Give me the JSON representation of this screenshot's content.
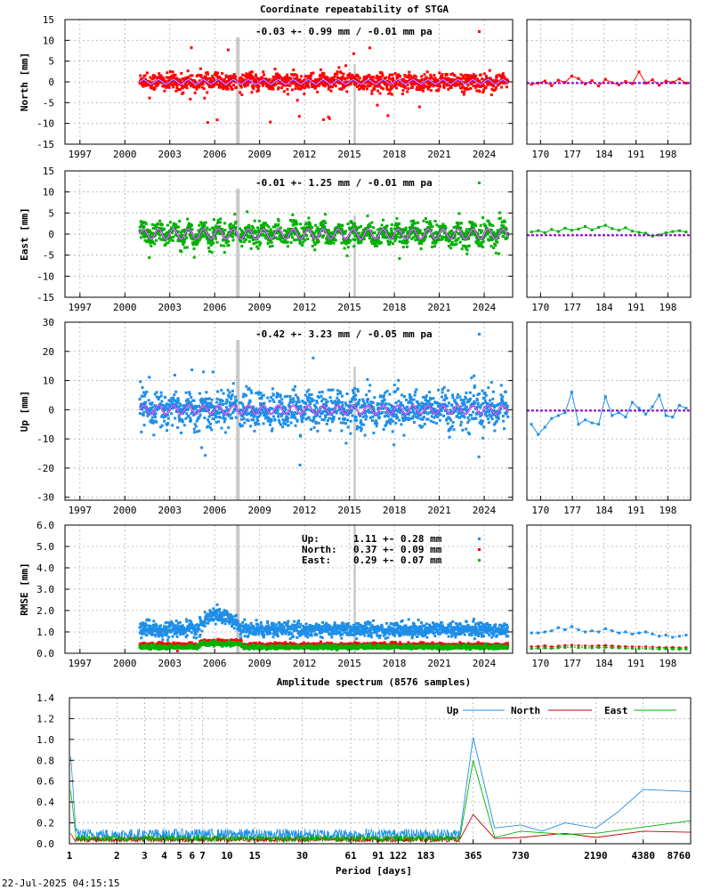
{
  "title": "Coordinate repeatability of STGA",
  "timestamp": "22-Jul-2025 04:15:15",
  "colors": {
    "north": "#ff0000",
    "east": "#00b000",
    "up": "#1e8ee8",
    "model": "#9400d3"
  },
  "chart_data": [
    {
      "id": "north",
      "type": "scatter",
      "ylabel": "North [mm]",
      "ylim": [
        -15,
        15
      ],
      "yticks": [
        -15,
        -10,
        -5,
        0,
        5,
        10,
        15
      ],
      "xlim": [
        1996.0,
        2025.9
      ],
      "xticks": [
        1997,
        2000,
        2003,
        2006,
        2009,
        2012,
        2015,
        2018,
        2021,
        2024
      ],
      "stat": "-0.03 +- 0.99 mm / -0.01 mm pa",
      "data_start": 2001.0,
      "data_end": 2025.6,
      "series": [
        {
          "name": "North",
          "sigma": 1.0,
          "outlier_range": [
            -10,
            9
          ],
          "seasonal_amplitude": 0.5
        }
      ],
      "recent": {
        "xlim": [
          167,
          203
        ],
        "xticks": [
          170,
          177,
          184,
          191,
          198
        ],
        "values": [
          -0.6,
          -0.3,
          0.2,
          -0.9,
          0.4,
          -0.1,
          1.4,
          0.8,
          -0.5,
          0.3,
          -1.0,
          0.6,
          -0.2,
          -0.7,
          0.1,
          -0.4,
          2.4,
          -0.3,
          0.5,
          -0.8,
          0.2,
          -0.1,
          0.7,
          -0.3
        ]
      }
    },
    {
      "id": "east",
      "type": "scatter",
      "ylabel": "East [mm]",
      "ylim": [
        -15,
        15
      ],
      "yticks": [
        -15,
        -10,
        -5,
        0,
        5,
        10,
        15
      ],
      "xlim": [
        1996.0,
        2025.9
      ],
      "xticks": [
        1997,
        2000,
        2003,
        2006,
        2009,
        2012,
        2015,
        2018,
        2021,
        2024
      ],
      "stat": "-0.01 +- 1.25 mm / -0.01 mm pa",
      "data_start": 2001.0,
      "data_end": 2025.6,
      "series": [
        {
          "name": "East",
          "sigma": 1.25,
          "outlier_range": [
            -6,
            5
          ],
          "seasonal_amplitude": 1.2
        }
      ],
      "recent": {
        "xlim": [
          167,
          203
        ],
        "xticks": [
          170,
          177,
          184,
          191,
          198
        ],
        "values": [
          0.5,
          0.8,
          0.3,
          1.1,
          0.6,
          1.4,
          0.9,
          1.2,
          1.8,
          1.0,
          1.6,
          2.1,
          1.3,
          0.9,
          1.5,
          0.7,
          0.4,
          0.2,
          -0.5,
          -0.2,
          0.3,
          0.6,
          0.8,
          0.5
        ]
      }
    },
    {
      "id": "up",
      "type": "scatter",
      "ylabel": "Up [mm]",
      "ylim": [
        -31,
        30
      ],
      "yticks": [
        -30,
        -20,
        -10,
        0,
        10,
        20,
        30
      ],
      "xlim": [
        1996.0,
        2025.9
      ],
      "xticks": [
        1997,
        2000,
        2003,
        2006,
        2009,
        2012,
        2015,
        2018,
        2021,
        2024
      ],
      "stat": "-0.42 +- 3.23 mm / -0.05 mm pa",
      "data_start": 2001.0,
      "data_end": 2025.6,
      "series": [
        {
          "name": "Up",
          "sigma": 3.2,
          "outlier_range": [
            -20,
            18
          ],
          "seasonal_amplitude": 1.5
        }
      ],
      "recent": {
        "xlim": [
          167,
          203
        ],
        "xticks": [
          170,
          177,
          184,
          191,
          198
        ],
        "values": [
          -5.0,
          -8.5,
          -6.0,
          -3.0,
          -2.0,
          -1.0,
          6.0,
          -5.0,
          -3.5,
          -4.5,
          -5.0,
          4.5,
          -2.0,
          -1.0,
          -2.5,
          2.5,
          0.5,
          -1.5,
          1.0,
          5.0,
          -2.0,
          -2.5,
          1.5,
          0.5
        ]
      }
    },
    {
      "id": "rmse",
      "type": "scatter",
      "ylabel": "RMSE [mm]",
      "ylim": [
        0,
        6
      ],
      "yticks": [
        0.0,
        1.0,
        2.0,
        3.0,
        4.0,
        5.0,
        6.0
      ],
      "ytick_labels": [
        "0.0",
        "1.0",
        "2.0",
        "3.0",
        "4.0",
        "5.0",
        "6.0"
      ],
      "xlim": [
        1996.0,
        2025.9
      ],
      "xticks": [
        1997,
        2000,
        2003,
        2006,
        2009,
        2012,
        2015,
        2018,
        2021,
        2024
      ],
      "data_start": 2001.0,
      "data_end": 2025.6,
      "legend": [
        {
          "label": "Up:",
          "value": "1.11 +- 0.28 mm"
        },
        {
          "label": "North:",
          "value": "0.37 +- 0.09 mm"
        },
        {
          "label": "East:",
          "value": "0.29 +- 0.07 mm"
        }
      ],
      "series": [
        {
          "name": "Up",
          "mean": 1.11,
          "sd": 0.28
        },
        {
          "name": "North",
          "mean": 0.37,
          "sd": 0.09
        },
        {
          "name": "East",
          "mean": 0.29,
          "sd": 0.07
        }
      ],
      "recent": {
        "xlim": [
          167,
          203
        ],
        "xticks": [
          170,
          177,
          184,
          191,
          198
        ],
        "up": [
          0.95,
          0.95,
          1.0,
          1.05,
          1.2,
          1.1,
          1.25,
          1.1,
          1.0,
          1.05,
          1.0,
          1.15,
          1.05,
          0.95,
          1.0,
          0.9,
          0.95,
          1.0,
          0.9,
          0.8,
          0.85,
          0.75,
          0.8,
          0.85
        ],
        "north": [
          0.3,
          0.32,
          0.35,
          0.3,
          0.33,
          0.36,
          0.38,
          0.35,
          0.34,
          0.33,
          0.35,
          0.37,
          0.34,
          0.32,
          0.31,
          0.3,
          0.29,
          0.3,
          0.28,
          0.27,
          0.26,
          0.27,
          0.25,
          0.26
        ],
        "east": [
          0.22,
          0.24,
          0.25,
          0.23,
          0.26,
          0.27,
          0.29,
          0.27,
          0.26,
          0.25,
          0.27,
          0.28,
          0.26,
          0.25,
          0.24,
          0.23,
          0.22,
          0.23,
          0.21,
          0.2,
          0.21,
          0.2,
          0.19,
          0.2
        ]
      }
    },
    {
      "id": "spectrum",
      "type": "line",
      "title": "Amplitude spectrum (8576 samples)",
      "xlabel": "Period [days]",
      "xscale": "log",
      "xlim": [
        1,
        8760
      ],
      "ylim": [
        0,
        1.4
      ],
      "yticks": [
        0.0,
        0.2,
        0.4,
        0.6,
        0.8,
        1.0,
        1.2,
        1.4
      ],
      "ytick_labels": [
        "0.0",
        "0.2",
        "0.4",
        "0.6",
        "0.8",
        "1.0",
        "1.2",
        "1.4"
      ],
      "xticks": [
        1,
        2,
        3,
        4,
        5,
        6,
        7,
        10,
        15,
        30,
        61,
        91,
        122,
        183,
        365,
        730,
        2190,
        4380,
        8760
      ],
      "legend_position": "top-right",
      "series": [
        {
          "name": "Up",
          "points": [
            [
              1,
              1.02
            ],
            [
              365,
              1.02
            ],
            [
              500,
              0.15
            ],
            [
              730,
              0.18
            ],
            [
              1000,
              0.12
            ],
            [
              1400,
              0.2
            ],
            [
              2190,
              0.15
            ],
            [
              3000,
              0.3
            ],
            [
              4380,
              0.52
            ],
            [
              8760,
              0.5
            ]
          ]
        },
        {
          "name": "North",
          "points": [
            [
              1,
              0.12
            ],
            [
              365,
              0.28
            ],
            [
              500,
              0.05
            ],
            [
              730,
              0.06
            ],
            [
              1400,
              0.1
            ],
            [
              2190,
              0.06
            ],
            [
              4380,
              0.12
            ],
            [
              8760,
              0.11
            ]
          ]
        },
        {
          "name": "East",
          "points": [
            [
              1,
              0.62
            ],
            [
              365,
              0.8
            ],
            [
              500,
              0.06
            ],
            [
              730,
              0.12
            ],
            [
              1400,
              0.09
            ],
            [
              2190,
              0.1
            ],
            [
              4380,
              0.16
            ],
            [
              8760,
              0.22
            ]
          ]
        }
      ]
    }
  ]
}
